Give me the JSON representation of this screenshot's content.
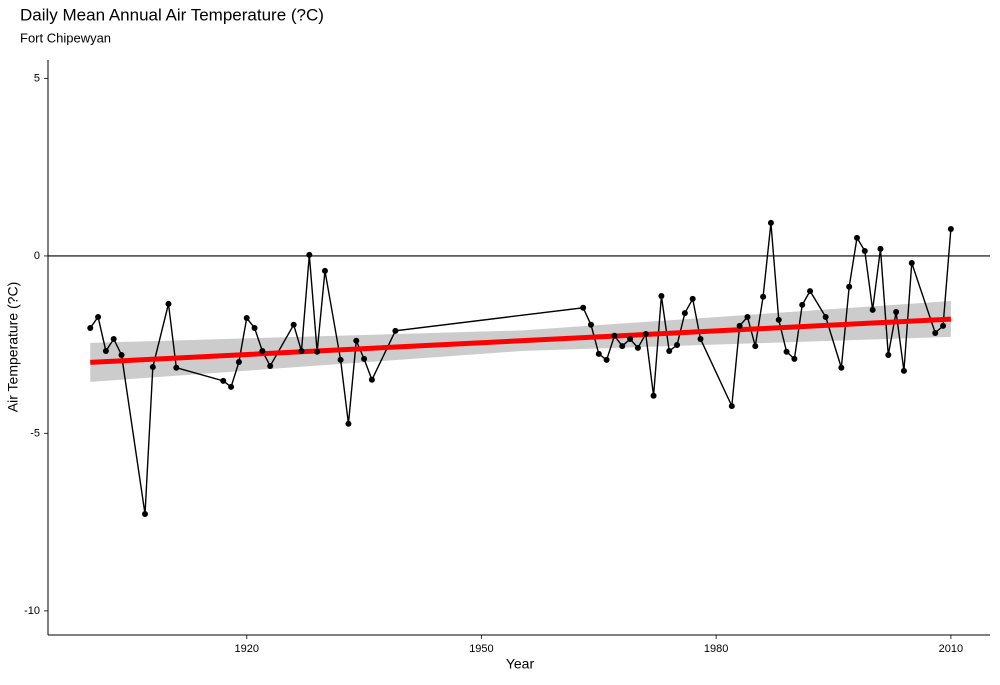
{
  "chart_data": {
    "type": "line",
    "title": "Daily Mean Annual Air Temperature (?C)",
    "subtitle": "Fort Chipewyan",
    "x_label": "Year",
    "y_label": "Air Temperature (?C)",
    "x": [
      1900,
      1901,
      1902,
      1903,
      1904,
      1907,
      1908,
      1910,
      1911,
      1917,
      1918,
      1919,
      1920,
      1921,
      1922,
      1923,
      1926,
      1927,
      1928,
      1929,
      1930,
      1932,
      1933,
      1934,
      1935,
      1936,
      1939,
      1963,
      1964,
      1965,
      1966,
      1967,
      1968,
      1969,
      1970,
      1971,
      1972,
      1973,
      1974,
      1975,
      1976,
      1977,
      1978,
      1982,
      1983,
      1984,
      1985,
      1986,
      1987,
      1988,
      1989,
      1990,
      1991,
      1992,
      1994,
      1996,
      1997,
      1998,
      1999,
      2000,
      2001,
      2002,
      2003,
      2004,
      2005,
      2008,
      2009,
      2010
    ],
    "values": [
      -2.03,
      -1.72,
      -2.68,
      -2.34,
      -2.79,
      -7.27,
      -3.13,
      -1.35,
      -3.15,
      -3.52,
      -3.69,
      -2.99,
      -1.75,
      -2.03,
      -2.68,
      -3.1,
      -1.94,
      -2.68,
      0.03,
      -2.7,
      -0.42,
      -2.93,
      -4.73,
      -2.39,
      -2.9,
      -3.49,
      -2.11,
      -1.46,
      -1.94,
      -2.76,
      -2.93,
      -2.25,
      -2.54,
      -2.34,
      -2.59,
      -2.2,
      -3.94,
      -1.13,
      -2.68,
      -2.51,
      -1.61,
      -1.21,
      -2.34,
      -4.23,
      -1.97,
      -1.72,
      -2.54,
      -1.15,
      0.93,
      -1.8,
      -2.7,
      -2.9,
      -1.38,
      -0.99,
      -1.72,
      -3.15,
      -0.87,
      0.51,
      0.14,
      -1.52,
      0.2,
      -2.79,
      -1.58,
      -3.24,
      -0.2,
      -2.17,
      -1.97,
      0.76
    ],
    "color": "#000000",
    "trend": {
      "color": "#ff0000",
      "band_color": "#cccccc",
      "x": [
        1900,
        1955,
        2010
      ],
      "values": [
        -3.0,
        -2.39,
        -1.78
      ],
      "lower": [
        -3.55,
        -2.68,
        -2.28
      ],
      "upper": [
        -2.45,
        -2.1,
        -1.27
      ]
    },
    "hline": 0,
    "xlim": [
      1894.6,
      2015.0
    ],
    "xticks": [
      1920,
      1950,
      1980,
      2010
    ],
    "ylim": [
      -10.68,
      5.52
    ],
    "yticks": [
      -10,
      -5,
      0,
      5
    ]
  }
}
